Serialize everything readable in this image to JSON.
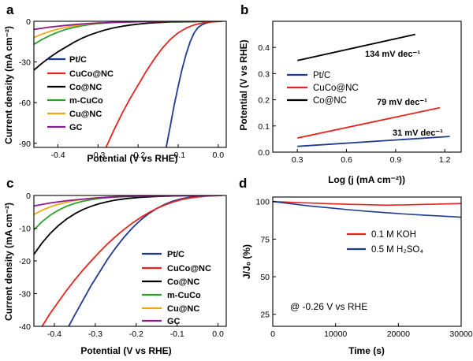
{
  "colors": {
    "pt_c": "#1f3a93",
    "cuco_nc": "#e8221c",
    "co_nc": "#000000",
    "m_cuco": "#2ca02c",
    "cu_nc": "#f0a818",
    "gc": "#8b1c8b",
    "koh": "#e8221c",
    "h2so4": "#1f3a93"
  },
  "chart_data": [
    {
      "panel": "a",
      "type": "line",
      "xlabel": "Potential (V vs RHE)",
      "ylabel": "Current density (mA cm⁻²)",
      "xlim": [
        -0.46,
        0.02
      ],
      "ylim": [
        -93,
        0
      ],
      "xticks": [
        "-0.4",
        "-0.3",
        "-0.2",
        "-0.1",
        "0.0"
      ],
      "xtick_values": [
        -0.4,
        -0.3,
        -0.2,
        -0.1,
        0.0
      ],
      "yticks": [
        "0",
        "-30",
        "-60",
        "-90"
      ],
      "ytick_values": [
        0,
        -30,
        -60,
        -90
      ],
      "series": [
        {
          "name": "Pt/C",
          "color_key": "pt_c",
          "x": [
            -0.13,
            -0.12,
            -0.11,
            -0.1,
            -0.09,
            -0.08,
            -0.07,
            -0.06,
            -0.05,
            -0.04,
            -0.03,
            -0.02,
            -0.01,
            0.0,
            0.01
          ],
          "y": [
            -93,
            -78,
            -62,
            -48,
            -35,
            -24,
            -15,
            -8.5,
            -4.5,
            -2.5,
            -1.3,
            -0.6,
            -0.25,
            -0.08,
            0
          ]
        },
        {
          "name": "CuCo@NC",
          "color_key": "cuco_nc",
          "x": [
            -0.28,
            -0.26,
            -0.24,
            -0.22,
            -0.2,
            -0.18,
            -0.16,
            -0.14,
            -0.12,
            -0.1,
            -0.08,
            -0.06,
            -0.04,
            -0.02,
            0.0,
            0.01
          ],
          "y": [
            -93,
            -80,
            -68,
            -57,
            -47,
            -37,
            -28,
            -20,
            -13.5,
            -8.5,
            -5,
            -2.7,
            -1.3,
            -0.5,
            -0.15,
            0
          ]
        },
        {
          "name": "Co@NC",
          "color_key": "co_nc",
          "x": [
            -0.46,
            -0.44,
            -0.42,
            -0.4,
            -0.38,
            -0.36,
            -0.34,
            -0.32,
            -0.3,
            -0.28,
            -0.26,
            -0.24,
            -0.22,
            -0.2,
            -0.18,
            -0.16,
            -0.14,
            -0.12,
            -0.1,
            -0.05,
            0.0,
            0.01
          ],
          "y": [
            -36,
            -31,
            -26.5,
            -22.5,
            -19,
            -15.5,
            -12.5,
            -10,
            -8,
            -6.2,
            -4.8,
            -3.7,
            -2.8,
            -2.1,
            -1.5,
            -1.1,
            -0.8,
            -0.55,
            -0.4,
            -0.15,
            -0.05,
            0
          ]
        },
        {
          "name": "m-CuCo",
          "color_key": "m_cuco",
          "x": [
            -0.46,
            -0.44,
            -0.42,
            -0.4,
            -0.38,
            -0.36,
            -0.34,
            -0.32,
            -0.3,
            -0.28,
            -0.26,
            -0.22,
            -0.18,
            -0.1,
            0.0,
            0.01
          ],
          "y": [
            -17,
            -13.5,
            -10.5,
            -8,
            -6,
            -4.5,
            -3.3,
            -2.4,
            -1.7,
            -1.2,
            -0.85,
            -0.45,
            -0.25,
            -0.08,
            -0.02,
            0
          ]
        },
        {
          "name": "Cu@NC",
          "color_key": "cu_nc",
          "x": [
            -0.46,
            -0.44,
            -0.42,
            -0.4,
            -0.38,
            -0.36,
            -0.34,
            -0.32,
            -0.3,
            -0.26,
            -0.22,
            -0.15,
            -0.05,
            0.01
          ],
          "y": [
            -12,
            -9.5,
            -7.5,
            -5.8,
            -4.4,
            -3.3,
            -2.5,
            -1.8,
            -1.3,
            -0.7,
            -0.35,
            -0.12,
            -0.03,
            0
          ]
        },
        {
          "name": "GC",
          "color_key": "gc",
          "x": [
            -0.46,
            -0.42,
            -0.38,
            -0.34,
            -0.3,
            -0.26,
            -0.2,
            -0.1,
            0.01
          ],
          "y": [
            -6,
            -4.3,
            -3,
            -2,
            -1.3,
            -0.8,
            -0.35,
            -0.08,
            0
          ]
        }
      ]
    },
    {
      "panel": "b",
      "type": "line",
      "xlabel": "Log (j (mA cm⁻²))",
      "ylabel": "Potential (V vs RHE)",
      "xlim": [
        0.15,
        1.3
      ],
      "ylim": [
        0,
        0.5
      ],
      "xticks": [
        "0.3",
        "0.6",
        "0.9",
        "1.2"
      ],
      "xtick_values": [
        0.3,
        0.6,
        0.9,
        1.2
      ],
      "yticks": [
        "0.0",
        "0.1",
        "0.2",
        "0.3",
        "0.4"
      ],
      "ytick_values": [
        0.0,
        0.1,
        0.2,
        0.3,
        0.4
      ],
      "series": [
        {
          "name": "Pt/C",
          "color_key": "pt_c",
          "x": [
            0.3,
            1.23
          ],
          "y": [
            0.022,
            0.06
          ]
        },
        {
          "name": "CuCo@NC",
          "color_key": "cuco_nc",
          "x": [
            0.3,
            1.17
          ],
          "y": [
            0.054,
            0.17
          ]
        },
        {
          "name": "Co@NC",
          "color_key": "co_nc",
          "x": [
            0.3,
            1.02
          ],
          "y": [
            0.35,
            0.45
          ]
        }
      ],
      "annotations": [
        "134 mV dec⁻¹",
        "79 mV dec⁻¹",
        "31 mV dec⁻¹"
      ]
    },
    {
      "panel": "c",
      "type": "line",
      "xlabel": "Potential (V vs RHE)",
      "ylabel": "Current density (mA cm⁻²)",
      "xlim": [
        -0.45,
        0.02
      ],
      "ylim": [
        -40,
        0
      ],
      "xticks": [
        "-0.4",
        "-0.3",
        "-0.2",
        "-0.1",
        "0.0"
      ],
      "xtick_values": [
        -0.4,
        -0.3,
        -0.2,
        -0.1,
        0.0
      ],
      "yticks": [
        "0",
        "-10",
        "-20",
        "-30",
        "-40"
      ],
      "ytick_values": [
        0,
        -10,
        -20,
        -30,
        -40
      ],
      "series": [
        {
          "name": "Pt/C",
          "color_key": "pt_c",
          "x": [
            -0.365,
            -0.35,
            -0.33,
            -0.31,
            -0.29,
            -0.27,
            -0.25,
            -0.23,
            -0.21,
            -0.19,
            -0.17,
            -0.15,
            -0.13,
            -0.11,
            -0.09,
            -0.07,
            -0.05,
            -0.03,
            -0.01,
            0.01
          ],
          "y": [
            -40,
            -36.5,
            -32,
            -27.5,
            -23.5,
            -19.5,
            -16,
            -12.8,
            -10,
            -7.6,
            -5.6,
            -4,
            -2.7,
            -1.7,
            -1,
            -0.55,
            -0.25,
            -0.1,
            -0.03,
            0
          ]
        },
        {
          "name": "CuCo@NC",
          "color_key": "cuco_nc",
          "x": [
            -0.43,
            -0.41,
            -0.39,
            -0.37,
            -0.35,
            -0.33,
            -0.31,
            -0.29,
            -0.27,
            -0.25,
            -0.23,
            -0.21,
            -0.19,
            -0.17,
            -0.15,
            -0.13,
            -0.11,
            -0.09,
            -0.07,
            -0.05,
            -0.03,
            0.0,
            0.01
          ],
          "y": [
            -40,
            -36,
            -32.5,
            -29,
            -25.8,
            -22.8,
            -20,
            -17.3,
            -14.8,
            -12.5,
            -10.4,
            -8.5,
            -6.8,
            -5.3,
            -4,
            -2.9,
            -2,
            -1.3,
            -0.8,
            -0.45,
            -0.2,
            -0.05,
            0
          ]
        },
        {
          "name": "Co@NC",
          "color_key": "co_nc",
          "x": [
            -0.45,
            -0.43,
            -0.41,
            -0.39,
            -0.37,
            -0.35,
            -0.33,
            -0.31,
            -0.29,
            -0.27,
            -0.25,
            -0.22,
            -0.19,
            -0.15,
            -0.1,
            -0.05,
            0.01
          ],
          "y": [
            -18,
            -14.5,
            -11.6,
            -9.2,
            -7.2,
            -5.6,
            -4.3,
            -3.3,
            -2.5,
            -1.9,
            -1.4,
            -0.9,
            -0.55,
            -0.3,
            -0.12,
            -0.04,
            0
          ]
        },
        {
          "name": "m-CuCo",
          "color_key": "m_cuco",
          "x": [
            -0.45,
            -0.43,
            -0.41,
            -0.39,
            -0.37,
            -0.35,
            -0.33,
            -0.31,
            -0.29,
            -0.26,
            -0.22,
            -0.18,
            -0.12,
            -0.05,
            0.01
          ],
          "y": [
            -10.5,
            -8,
            -6,
            -4.5,
            -3.3,
            -2.4,
            -1.75,
            -1.25,
            -0.9,
            -0.55,
            -0.3,
            -0.16,
            -0.06,
            -0.02,
            0
          ]
        },
        {
          "name": "Cu@NC",
          "color_key": "cu_nc",
          "x": [
            -0.45,
            -0.43,
            -0.41,
            -0.39,
            -0.37,
            -0.35,
            -0.33,
            -0.31,
            -0.28,
            -0.24,
            -0.2,
            -0.14,
            -0.07,
            0.01
          ],
          "y": [
            -5.8,
            -4.5,
            -3.5,
            -2.7,
            -2.05,
            -1.55,
            -1.15,
            -0.85,
            -0.55,
            -0.3,
            -0.16,
            -0.06,
            -0.02,
            0
          ]
        },
        {
          "name": "GC",
          "color_key": "gc",
          "x": [
            -0.45,
            -0.41,
            -0.37,
            -0.33,
            -0.29,
            -0.25,
            -0.2,
            -0.12,
            0.01
          ],
          "y": [
            -3.2,
            -2.3,
            -1.6,
            -1.1,
            -0.7,
            -0.42,
            -0.2,
            -0.06,
            0
          ]
        }
      ]
    },
    {
      "panel": "d",
      "type": "line",
      "xlabel": "Time (s)",
      "ylabel": "J/J₀ (%)",
      "xlim": [
        0,
        30000
      ],
      "ylim": [
        17,
        103
      ],
      "xticks": [
        "0",
        "10000",
        "20000",
        "30000"
      ],
      "xtick_values": [
        0,
        10000,
        20000,
        30000
      ],
      "yticks": [
        "25",
        "50",
        "75",
        "100"
      ],
      "ytick_values": [
        25,
        50,
        75,
        100
      ],
      "series": [
        {
          "name": "0.1 M KOH",
          "color_key": "koh",
          "x": [
            0,
            3000,
            6000,
            9000,
            12000,
            15000,
            18000,
            21000,
            24000,
            27000,
            30000
          ],
          "y": [
            100,
            99.5,
            99,
            98.6,
            98.2,
            97.9,
            97.6,
            97.8,
            98.1,
            98.4,
            98.7
          ]
        },
        {
          "name": "0.5 M H₂SO₄",
          "color_key": "h2so4",
          "x": [
            0,
            3000,
            6000,
            9000,
            12000,
            15000,
            18000,
            21000,
            24000,
            27000,
            30000
          ],
          "y": [
            100,
            98.5,
            97,
            95.8,
            94.6,
            93.5,
            92.6,
            91.7,
            91,
            90.3,
            89.6
          ]
        }
      ],
      "annotations": [
        "@ -0.26 V vs RHE"
      ]
    }
  ]
}
